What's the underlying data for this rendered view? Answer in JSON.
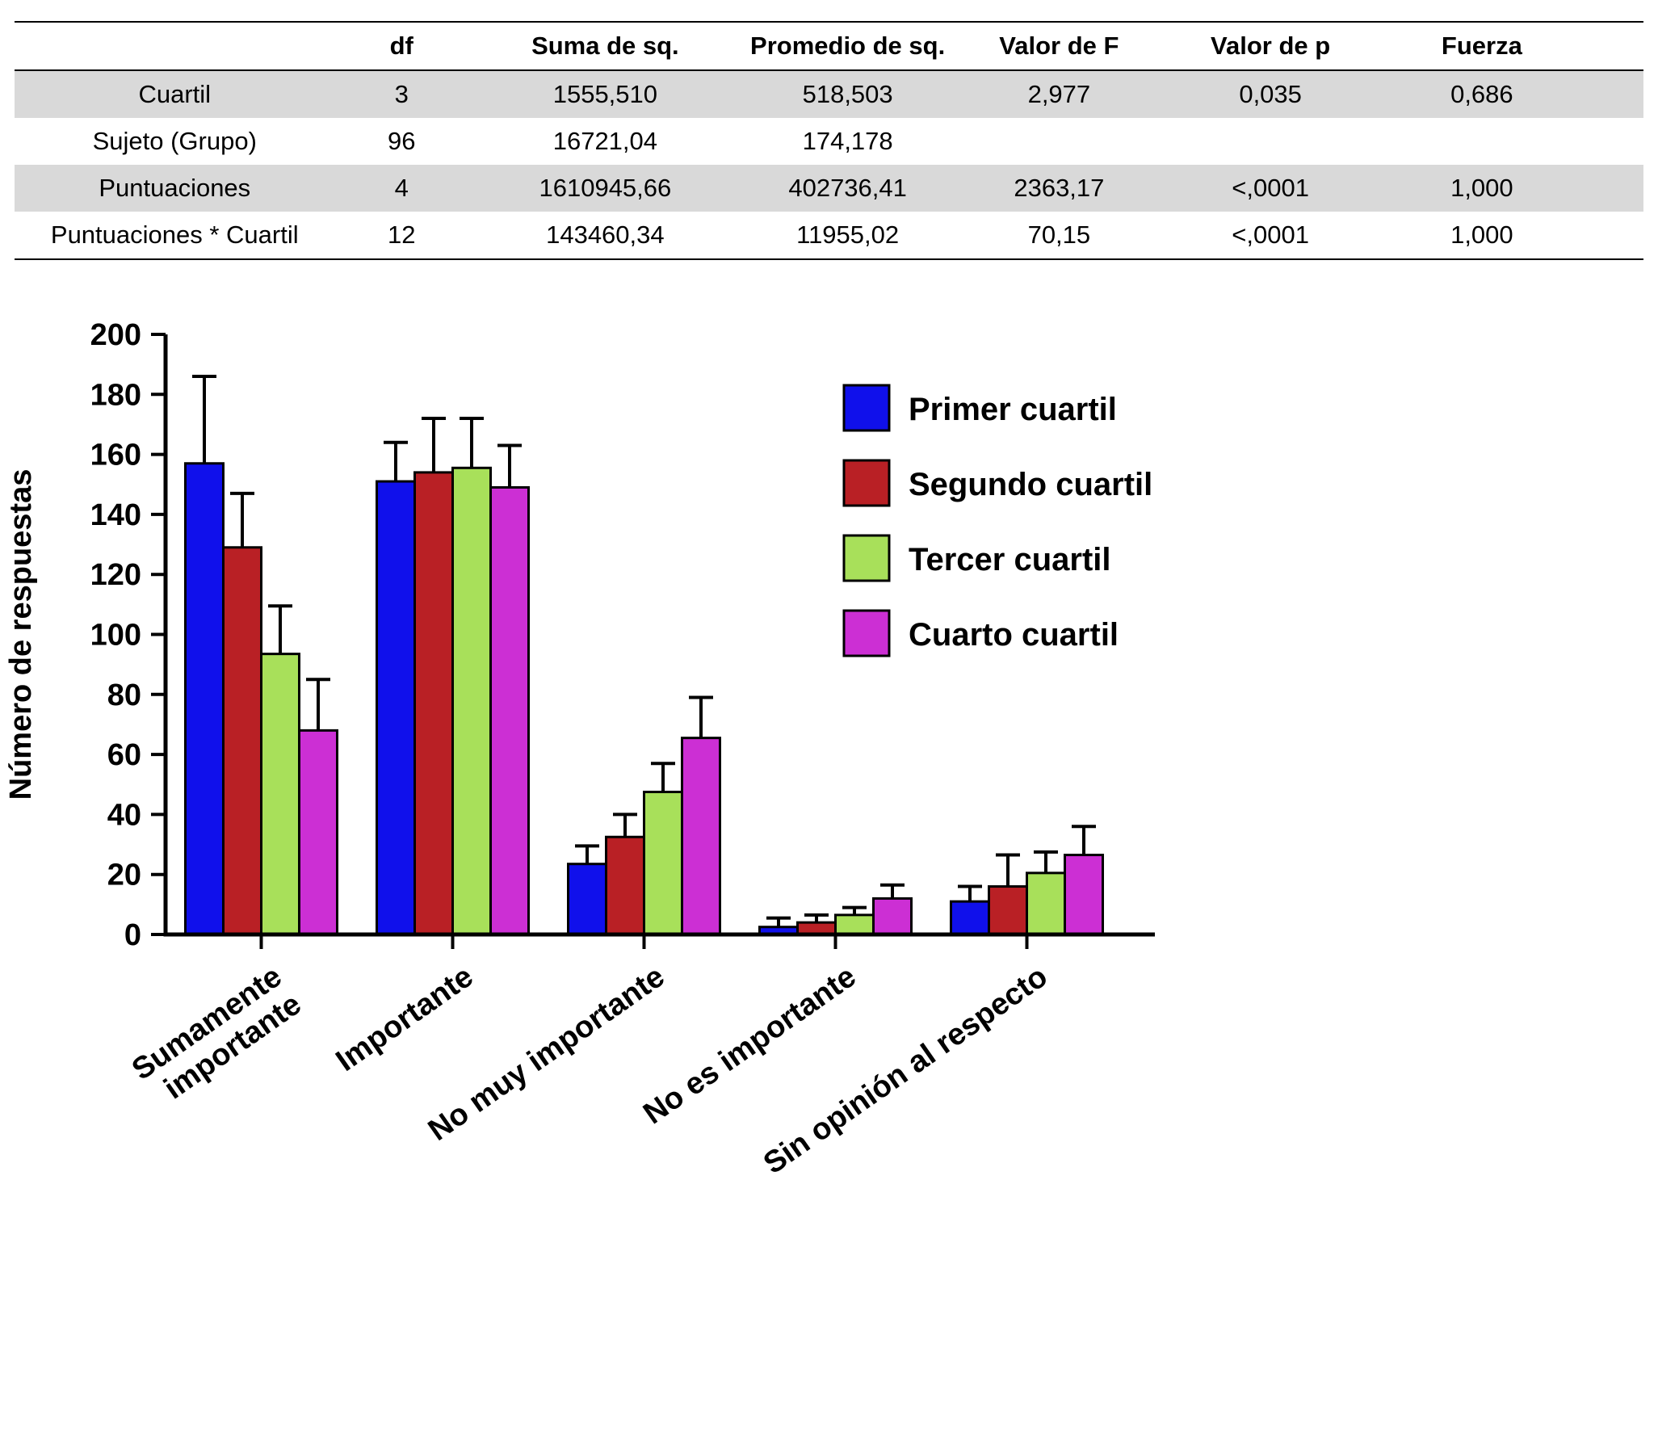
{
  "table": {
    "columns": [
      "",
      "df",
      "Suma de sq.",
      "Promedio de sq.",
      "Valor de F",
      "Valor de p",
      "Fuerza"
    ],
    "rows": [
      {
        "label": "Cuartil",
        "values": [
          "3",
          "1555,510",
          "518,503",
          "2,977",
          "0,035",
          "0,686"
        ],
        "shaded": true
      },
      {
        "label": "Sujeto (Grupo)",
        "values": [
          "96",
          "16721,04",
          "174,178",
          "",
          "",
          ""
        ],
        "shaded": false
      },
      {
        "label": "Puntuaciones",
        "values": [
          "4",
          "1610945,66",
          "402736,41",
          "2363,17",
          "<,0001",
          "1,000"
        ],
        "shaded": true
      },
      {
        "label": "Puntuaciones * Cuartil",
        "values": [
          "12",
          "143460,34",
          "11955,02",
          "70,15",
          "<,0001",
          "1,000"
        ],
        "shaded": false
      }
    ],
    "shaded_color": "#d9d9d9"
  },
  "chart_data": {
    "type": "bar",
    "title": "",
    "xlabel": "",
    "ylabel": "Número de respuestas",
    "ylim": [
      0,
      200
    ],
    "ytick_step": 20,
    "grid": false,
    "legend_position": "top-right-inside",
    "categories": [
      "Sumamente\nimportante",
      "Importante",
      "No muy importante",
      "No es importante",
      "Sin opinión al respecto"
    ],
    "series": [
      {
        "name": "Primer cuartil",
        "color": "#1010EB",
        "values": [
          157,
          151,
          23.5,
          2.5,
          11
        ],
        "errors": [
          29,
          13,
          6,
          3,
          5
        ]
      },
      {
        "name": "Segundo cuartil",
        "color": "#B92025",
        "values": [
          129,
          154,
          32.5,
          4,
          16
        ],
        "errors": [
          18,
          18,
          7.5,
          2.5,
          10.5
        ]
      },
      {
        "name": "Tercer cuartil",
        "color": "#A8E05A",
        "values": [
          93.5,
          155.5,
          47.5,
          6.5,
          20.5
        ],
        "errors": [
          16,
          16.5,
          9.5,
          2.5,
          7
        ]
      },
      {
        "name": "Cuarto cuartil",
        "color": "#CC2FD4",
        "values": [
          68,
          149,
          65.5,
          12,
          26.5
        ],
        "errors": [
          17,
          14,
          13.5,
          4.5,
          9.5
        ]
      }
    ]
  }
}
